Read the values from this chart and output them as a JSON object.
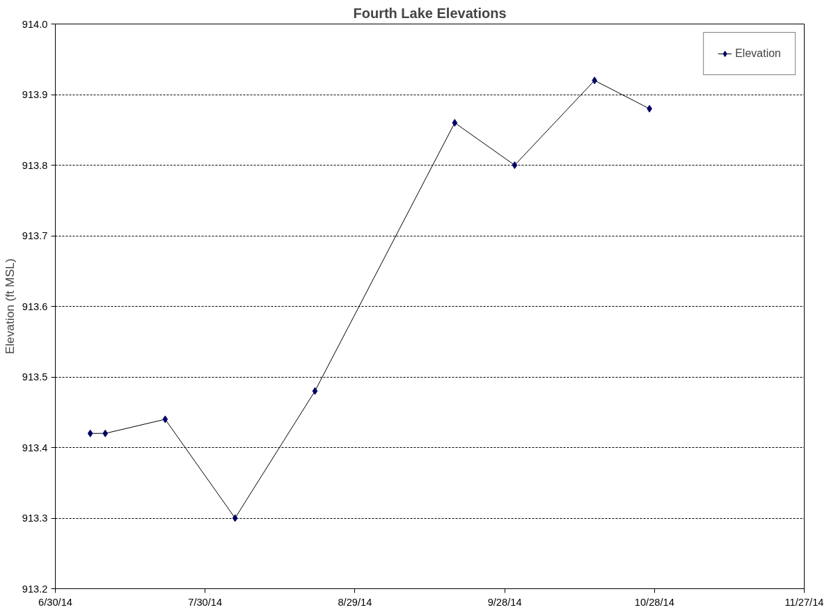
{
  "chart_data": {
    "type": "line",
    "title": "Fourth Lake Elevations",
    "ylabel": "Elevation (ft MSL)",
    "x": [
      "2014-07-07",
      "2014-07-10",
      "2014-07-22",
      "2014-08-05",
      "2014-08-21",
      "2014-09-18",
      "2014-09-30",
      "2014-10-16",
      "2014-10-27"
    ],
    "series": [
      {
        "name": "Elevation",
        "color": "#000066",
        "values": [
          913.42,
          913.42,
          913.44,
          913.3,
          913.48,
          913.86,
          913.8,
          913.92,
          913.88
        ]
      }
    ],
    "xlim": [
      "2014-06-30",
      "2014-11-27"
    ],
    "xticks": [
      {
        "value": "2014-06-30",
        "label": "6/30/14"
      },
      {
        "value": "2014-07-30",
        "label": "7/30/14"
      },
      {
        "value": "2014-08-29",
        "label": "8/29/14"
      },
      {
        "value": "2014-09-28",
        "label": "9/28/14"
      },
      {
        "value": "2014-10-28",
        "label": "10/28/14"
      },
      {
        "value": "2014-11-27",
        "label": "11/27/14"
      }
    ],
    "ylim": [
      913.2,
      914.0
    ],
    "yticks": [
      {
        "value": 913.2,
        "label": "913.2"
      },
      {
        "value": 913.3,
        "label": "913.3"
      },
      {
        "value": 913.4,
        "label": "913.4"
      },
      {
        "value": 913.5,
        "label": "913.5"
      },
      {
        "value": 913.6,
        "label": "913.6"
      },
      {
        "value": 913.7,
        "label": "913.7"
      },
      {
        "value": 913.8,
        "label": "913.8"
      },
      {
        "value": 913.9,
        "label": "913.9"
      },
      {
        "value": 914.0,
        "label": "914.0"
      }
    ],
    "grid": "y",
    "legend": "top right",
    "marker": "diamond",
    "line_style": "solid"
  }
}
